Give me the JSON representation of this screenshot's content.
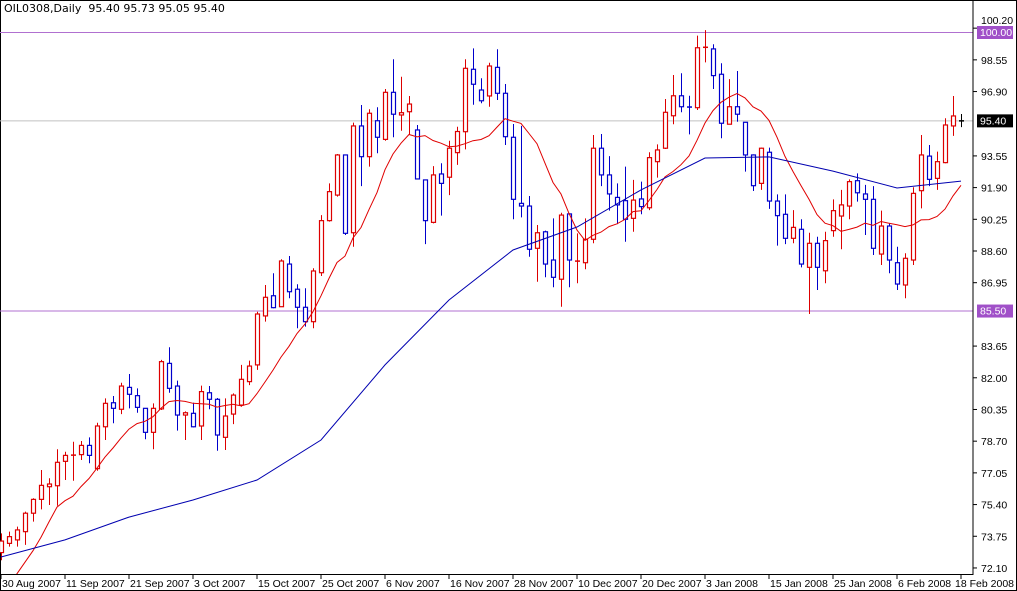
{
  "header": {
    "symbol": "OIL0308,Daily",
    "ohlc": "95.40 95.73 95.05 95.40"
  },
  "chart_data": {
    "type": "candlestick",
    "title": "OIL0308,Daily",
    "ylim": [
      72.1,
      100.2
    ],
    "y_ticks": [
      "100.20",
      "98.55",
      "96.90",
      "93.55",
      "91.90",
      "90.25",
      "88.60",
      "86.95",
      "83.65",
      "82.00",
      "80.35",
      "78.70",
      "77.05",
      "75.40",
      "73.75",
      "72.10"
    ],
    "x_labels": [
      "30 Aug 2007",
      "11 Sep 2007",
      "21 Sep 2007",
      "3 Oct 2007",
      "15 Oct 2007",
      "25 Oct 2007",
      "6 Nov 2007",
      "16 Nov 2007",
      "28 Nov 2007",
      "10 Dec 2007",
      "20 Dec 2007",
      "3 Jan 2008",
      "15 Jan 2008",
      "25 Jan 2008",
      "6 Feb 2008",
      "18 Feb 2008"
    ],
    "x_label_every_bars": 8,
    "colors": {
      "up": "#dd0000",
      "down": "#0000cc",
      "unchanged": "#000000",
      "ma_fast": "#e00000",
      "ma_slow": "#0000b0",
      "level_line": "#b070d0",
      "level_label": "#a050c8",
      "price_line": "#c0c0c0"
    },
    "ohlc_columns": [
      "open",
      "high",
      "low",
      "close"
    ],
    "candles": [
      [
        72.9,
        73.9,
        72.5,
        73.5
      ],
      [
        73.38,
        73.99,
        73.21,
        73.73
      ],
      [
        73.56,
        74.25,
        73.21,
        74.08
      ],
      [
        73.99,
        75.03,
        73.3,
        74.95
      ],
      [
        74.95,
        75.73,
        74.51,
        75.67
      ],
      [
        75.67,
        77.2,
        75.15,
        76.4
      ],
      [
        76.33,
        76.77,
        75.38,
        76.47
      ],
      [
        76.38,
        78.28,
        75.34,
        77.6
      ],
      [
        77.65,
        78.15,
        76.68,
        77.96
      ],
      [
        77.98,
        78.67,
        76.64,
        78.0
      ],
      [
        78.0,
        78.71,
        77.72,
        78.48
      ],
      [
        78.48,
        78.9,
        77.55,
        77.96
      ],
      [
        77.27,
        79.66,
        77.16,
        79.49
      ],
      [
        79.45,
        80.93,
        78.76,
        80.67
      ],
      [
        80.7,
        81.05,
        79.63,
        80.41
      ],
      [
        80.36,
        81.74,
        80.11,
        81.57
      ],
      [
        81.5,
        82.2,
        80.41,
        81.14
      ],
      [
        81.07,
        81.45,
        80.18,
        80.46
      ],
      [
        80.41,
        80.41,
        78.8,
        79.16
      ],
      [
        79.16,
        80.67,
        78.28,
        80.41
      ],
      [
        80.38,
        82.93,
        80.32,
        82.84
      ],
      [
        82.75,
        83.59,
        81.22,
        81.45
      ],
      [
        81.57,
        81.85,
        79.25,
        80.06
      ],
      [
        80.06,
        80.25,
        78.76,
        80.18
      ],
      [
        80.15,
        80.7,
        79.42,
        79.45
      ],
      [
        79.49,
        81.59,
        78.76,
        81.28
      ],
      [
        81.22,
        81.57,
        80.36,
        80.88
      ],
      [
        80.88,
        80.95,
        78.2,
        79.02
      ],
      [
        78.9,
        80.93,
        78.24,
        80.01
      ],
      [
        80.11,
        81.19,
        79.59,
        81.1
      ],
      [
        80.58,
        82.67,
        80.49,
        81.92
      ],
      [
        81.8,
        82.89,
        81.62,
        82.61
      ],
      [
        82.67,
        85.44,
        82.41,
        85.32
      ],
      [
        85.22,
        86.83,
        84.92,
        86.19
      ],
      [
        86.27,
        87.44,
        85.62,
        85.65
      ],
      [
        85.7,
        88.17,
        85.7,
        88.08
      ],
      [
        87.92,
        88.34,
        86.14,
        86.48
      ],
      [
        86.61,
        86.87,
        84.58,
        85.67
      ],
      [
        85.67,
        86.66,
        84.66,
        84.92
      ],
      [
        84.92,
        87.7,
        84.58,
        87.56
      ],
      [
        87.47,
        90.47,
        87.3,
        90.18
      ],
      [
        90.18,
        92.12,
        90.13,
        91.69
      ],
      [
        91.51,
        93.65,
        91.43,
        93.6
      ],
      [
        93.6,
        93.6,
        89.43,
        89.52
      ],
      [
        89.55,
        95.28,
        88.82,
        95.11
      ],
      [
        95.11,
        96.2,
        91.98,
        93.51
      ],
      [
        93.51,
        95.98,
        92.99,
        95.77
      ],
      [
        95.38,
        96.08,
        93.69,
        94.52
      ],
      [
        94.41,
        97.03,
        94.34,
        96.86
      ],
      [
        96.86,
        98.58,
        94.52,
        95.72
      ],
      [
        95.68,
        97.67,
        94.86,
        95.8
      ],
      [
        95.85,
        96.67,
        94.64,
        96.25
      ],
      [
        94.9,
        95.16,
        92.35,
        92.35
      ],
      [
        92.3,
        92.3,
        88.96,
        90.18
      ],
      [
        90.09,
        93.02,
        90.04,
        92.56
      ],
      [
        92.61,
        93.17,
        90.44,
        92.12
      ],
      [
        92.44,
        94.34,
        91.51,
        93.95
      ],
      [
        93.72,
        95.07,
        93.08,
        94.82
      ],
      [
        94.81,
        98.58,
        93.89,
        98.11
      ],
      [
        98.06,
        99.15,
        96.21,
        97.28
      ],
      [
        96.98,
        97.59,
        96.29,
        96.42
      ],
      [
        96.67,
        98.4,
        96.11,
        98.23
      ],
      [
        98.16,
        99.1,
        96.46,
        96.81
      ],
      [
        96.81,
        97.29,
        94.12,
        94.55
      ],
      [
        94.52,
        95.21,
        90.25,
        91.29
      ],
      [
        91.08,
        95.11,
        90.35,
        90.94
      ],
      [
        90.94,
        91.46,
        88.3,
        88.69
      ],
      [
        88.74,
        89.95,
        87.0,
        89.55
      ],
      [
        89.6,
        89.66,
        87.23,
        87.92
      ],
      [
        88.13,
        90.3,
        86.71,
        87.23
      ],
      [
        87.13,
        90.59,
        85.7,
        90.47
      ],
      [
        90.53,
        90.56,
        86.71,
        88.13
      ],
      [
        88.08,
        89.52,
        86.92,
        88.1
      ],
      [
        87.99,
        90.3,
        87.65,
        89.21
      ],
      [
        89.21,
        94.64,
        89.0,
        93.95
      ],
      [
        93.95,
        94.69,
        91.98,
        92.56
      ],
      [
        92.56,
        93.54,
        90.7,
        91.57
      ],
      [
        91.39,
        92.12,
        90.0,
        91.0
      ],
      [
        91.22,
        92.99,
        89.08,
        90.25
      ],
      [
        90.3,
        92.3,
        89.6,
        91.25
      ],
      [
        91.31,
        92.21,
        90.51,
        90.91
      ],
      [
        90.85,
        93.74,
        90.73,
        93.46
      ],
      [
        93.25,
        94.15,
        92.42,
        93.86
      ],
      [
        93.95,
        96.51,
        93.91,
        95.82
      ],
      [
        95.64,
        97.76,
        95.2,
        96.68
      ],
      [
        96.68,
        97.85,
        95.82,
        96.11
      ],
      [
        96.12,
        96.68,
        94.67,
        96.11
      ],
      [
        96.06,
        99.81,
        95.94,
        99.18
      ],
      [
        99.2,
        100.1,
        98.42,
        99.23
      ],
      [
        99.12,
        99.36,
        97.03,
        97.73
      ],
      [
        97.8,
        98.37,
        94.47,
        95.25
      ],
      [
        95.2,
        97.55,
        95.2,
        96.11
      ],
      [
        96.11,
        97.97,
        95.33,
        95.72
      ],
      [
        95.3,
        95.3,
        92.73,
        93.6
      ],
      [
        93.6,
        93.63,
        91.72,
        92.0
      ],
      [
        92.12,
        93.98,
        91.78,
        93.95
      ],
      [
        93.74,
        93.98,
        90.79,
        91.2
      ],
      [
        91.2,
        91.55,
        88.88,
        90.44
      ],
      [
        90.51,
        91.55,
        88.96,
        89.26
      ],
      [
        89.26,
        90.73,
        89.0,
        89.83
      ],
      [
        89.73,
        90.25,
        87.75,
        87.92
      ],
      [
        87.75,
        89.55,
        85.32,
        89.0
      ],
      [
        89.0,
        89.34,
        86.57,
        87.75
      ],
      [
        87.57,
        89.6,
        86.92,
        89.14
      ],
      [
        89.66,
        91.29,
        89.34,
        90.7
      ],
      [
        90.42,
        91.78,
        88.69,
        91.0
      ],
      [
        90.94,
        92.33,
        90.25,
        92.21
      ],
      [
        92.26,
        92.64,
        91.17,
        91.63
      ],
      [
        91.57,
        92.04,
        89.43,
        91.29
      ],
      [
        91.29,
        91.98,
        88.39,
        88.74
      ],
      [
        88.44,
        90.7,
        87.87,
        89.9
      ],
      [
        89.9,
        90.04,
        87.44,
        88.13
      ],
      [
        87.99,
        88.82,
        86.57,
        86.88
      ],
      [
        86.83,
        88.48,
        86.14,
        88.22
      ],
      [
        88.13,
        91.92,
        87.87,
        91.6
      ],
      [
        91.74,
        94.64,
        90.82,
        93.6
      ],
      [
        93.54,
        94.12,
        91.98,
        92.33
      ],
      [
        92.38,
        93.77,
        91.78,
        93.25
      ],
      [
        93.2,
        95.51,
        93.17,
        95.16
      ],
      [
        95.11,
        96.67,
        94.59,
        95.63
      ],
      [
        95.4,
        95.73,
        95.05,
        95.4
      ]
    ],
    "ma_fast": {
      "period": 10,
      "leading_values": [
        70.6,
        71.2,
        71.8,
        72.4,
        73.0,
        73.7,
        74.5,
        75.27,
        75.6
      ]
    },
    "ma_slow_at_labels": [
      72.67,
      73.56,
      74.75,
      75.64,
      76.68,
      78.76,
      82.67,
      86.05,
      88.65,
      89.85,
      91.78,
      93.44,
      93.5,
      92.76,
      91.88,
      92.24
    ],
    "levels": [
      {
        "value": 100.0,
        "label": "100.00"
      },
      {
        "value": 85.5,
        "label": "85.50"
      }
    ],
    "current_price": {
      "value": 95.4,
      "label": "95.40"
    }
  }
}
